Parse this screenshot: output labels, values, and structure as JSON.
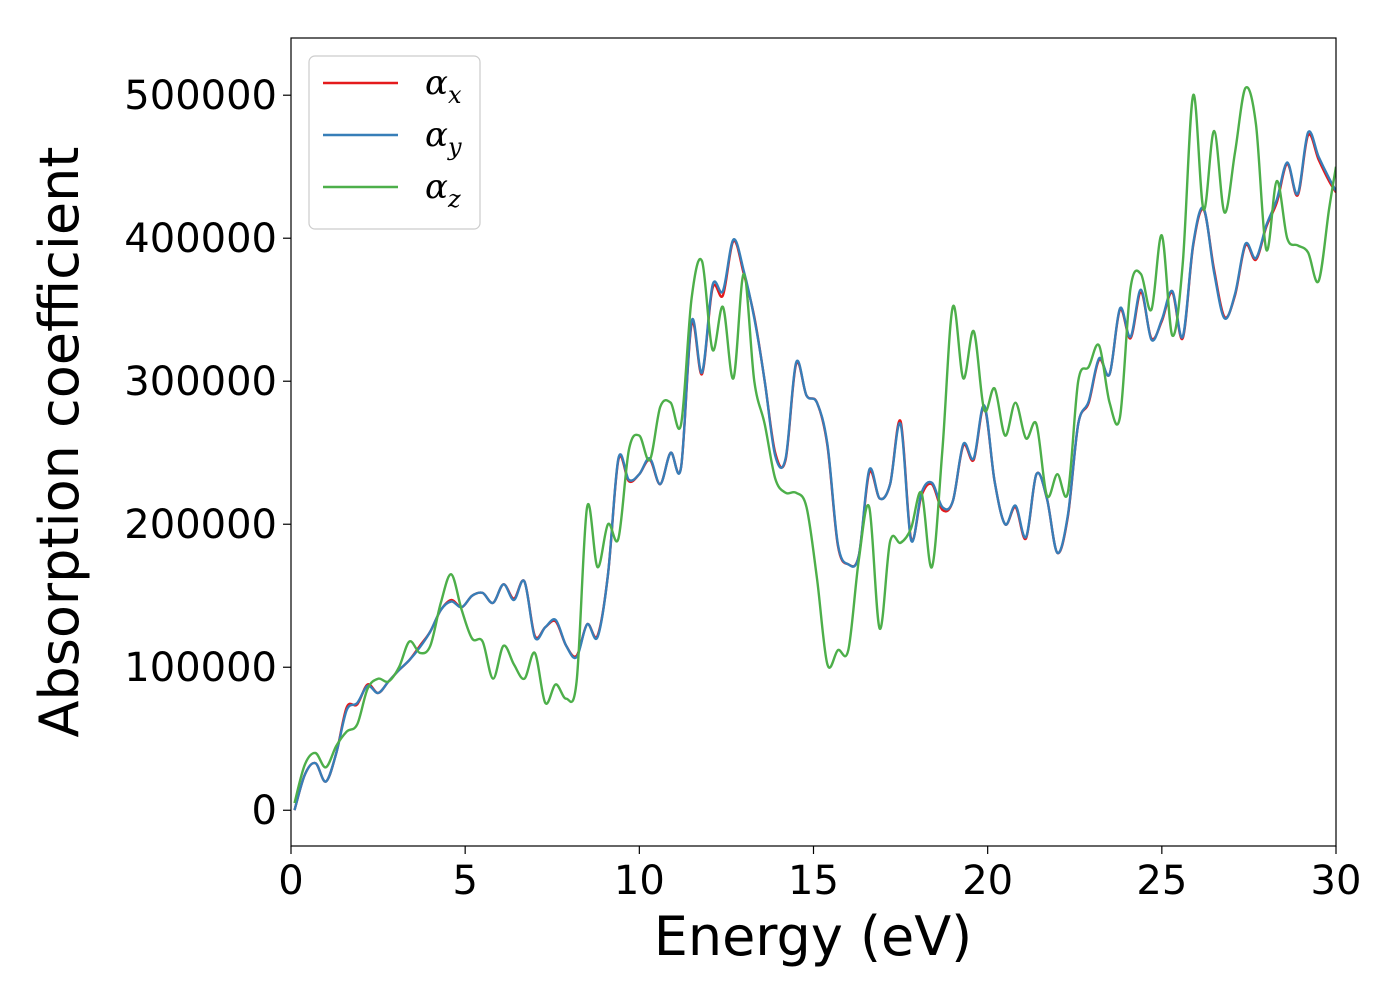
{
  "chart_data": {
    "type": "line",
    "xlabel": "Energy (eV)",
    "ylabel": "Absorption coefficient",
    "xlim": [
      0,
      30
    ],
    "ylim": [
      -25000,
      540000
    ],
    "x_ticks": [
      "0",
      "5",
      "10",
      "15",
      "20",
      "25",
      "30"
    ],
    "y_ticks": [
      "0",
      "100000",
      "200000",
      "300000",
      "400000",
      "500000"
    ],
    "grid": false,
    "legend_placement": "upper-left",
    "series": [
      {
        "name": "α_x",
        "color": "#e41a1c",
        "x": [
          0.1,
          0.4,
          0.7,
          1.0,
          1.3,
          1.6,
          1.9,
          2.2,
          2.5,
          2.8,
          3.1,
          3.4,
          3.7,
          4.0,
          4.3,
          4.6,
          4.9,
          5.2,
          5.5,
          5.8,
          6.1,
          6.4,
          6.7,
          7.0,
          7.3,
          7.6,
          7.9,
          8.2,
          8.5,
          8.8,
          9.1,
          9.4,
          9.7,
          10.0,
          10.3,
          10.6,
          10.9,
          11.2,
          11.5,
          11.8,
          12.1,
          12.4,
          12.7,
          13.0,
          13.3,
          13.6,
          13.9,
          14.2,
          14.5,
          14.8,
          15.1,
          15.4,
          15.7,
          16.0,
          16.3,
          16.6,
          16.9,
          17.2,
          17.5,
          17.8,
          18.1,
          18.4,
          18.7,
          19.0,
          19.3,
          19.6,
          19.9,
          20.2,
          20.5,
          20.8,
          21.1,
          21.4,
          21.7,
          22.0,
          22.3,
          22.6,
          22.9,
          23.2,
          23.5,
          23.8,
          24.1,
          24.4,
          24.7,
          25.0,
          25.3,
          25.6,
          25.9,
          26.2,
          26.5,
          26.8,
          27.1,
          27.4,
          27.7,
          28.0,
          28.3,
          28.6,
          28.9,
          29.2,
          29.5,
          29.8,
          30.0
        ],
        "y": [
          0,
          25000,
          33000,
          20000,
          40000,
          72000,
          74000,
          88000,
          82000,
          90000,
          98000,
          105000,
          115000,
          125000,
          140000,
          147000,
          142000,
          150000,
          152000,
          145000,
          158000,
          148000,
          160000,
          122000,
          128000,
          132000,
          115000,
          108000,
          130000,
          122000,
          165000,
          245000,
          230000,
          235000,
          245000,
          228000,
          250000,
          240000,
          340000,
          305000,
          365000,
          360000,
          398000,
          375000,
          345000,
          300000,
          250000,
          245000,
          312000,
          290000,
          285000,
          255000,
          185000,
          172000,
          178000,
          236000,
          218000,
          228000,
          272000,
          190000,
          220000,
          228000,
          210000,
          216000,
          255000,
          245000,
          282000,
          230000,
          200000,
          212000,
          190000,
          235000,
          218000,
          180000,
          205000,
          270000,
          285000,
          315000,
          305000,
          350000,
          330000,
          362000,
          330000,
          342000,
          362000,
          330000,
          395000,
          420000,
          378000,
          345000,
          360000,
          395000,
          385000,
          408000,
          425000,
          452000,
          430000,
          472000,
          455000,
          440000,
          432000
        ]
      },
      {
        "name": "α_y",
        "color": "#377eb8",
        "x": [
          0.1,
          0.4,
          0.7,
          1.0,
          1.3,
          1.6,
          1.9,
          2.2,
          2.5,
          2.8,
          3.1,
          3.4,
          3.7,
          4.0,
          4.3,
          4.6,
          4.9,
          5.2,
          5.5,
          5.8,
          6.1,
          6.4,
          6.7,
          7.0,
          7.3,
          7.6,
          7.9,
          8.2,
          8.5,
          8.8,
          9.1,
          9.4,
          9.7,
          10.0,
          10.3,
          10.6,
          10.9,
          11.2,
          11.5,
          11.8,
          12.1,
          12.4,
          12.7,
          13.0,
          13.3,
          13.6,
          13.9,
          14.2,
          14.5,
          14.8,
          15.1,
          15.4,
          15.7,
          16.0,
          16.3,
          16.6,
          16.9,
          17.2,
          17.5,
          17.8,
          18.1,
          18.4,
          18.7,
          19.0,
          19.3,
          19.6,
          19.9,
          20.2,
          20.5,
          20.8,
          21.1,
          21.4,
          21.7,
          22.0,
          22.3,
          22.6,
          22.9,
          23.2,
          23.5,
          23.8,
          24.1,
          24.4,
          24.7,
          25.0,
          25.3,
          25.6,
          25.9,
          26.2,
          26.5,
          26.8,
          27.1,
          27.4,
          27.7,
          28.0,
          28.3,
          28.6,
          28.9,
          29.2,
          29.5,
          29.8,
          30.0
        ],
        "y": [
          0,
          25000,
          33000,
          20000,
          40000,
          70000,
          75000,
          87000,
          82000,
          90000,
          98000,
          105000,
          114000,
          125000,
          140000,
          146000,
          142000,
          150000,
          152000,
          145000,
          158000,
          147000,
          160000,
          121000,
          128000,
          133000,
          115000,
          107000,
          130000,
          121000,
          165000,
          246000,
          231000,
          235000,
          246000,
          228000,
          250000,
          240000,
          342000,
          306000,
          367000,
          363000,
          399000,
          377000,
          344000,
          300000,
          248000,
          246000,
          313000,
          290000,
          285000,
          256000,
          186000,
          172000,
          178000,
          238000,
          218000,
          228000,
          270000,
          189000,
          222000,
          229000,
          212000,
          216000,
          256000,
          246000,
          283000,
          230000,
          200000,
          213000,
          191000,
          235000,
          218000,
          180000,
          206000,
          270000,
          286000,
          316000,
          305000,
          351000,
          331000,
          364000,
          329000,
          343000,
          363000,
          331000,
          396000,
          421000,
          376000,
          344000,
          361000,
          396000,
          386000,
          409000,
          427000,
          453000,
          431000,
          474000,
          457000,
          442000,
          433000
        ]
      },
      {
        "name": "α_z",
        "color": "#4daf4a",
        "x": [
          0.1,
          0.4,
          0.7,
          1.0,
          1.3,
          1.6,
          1.9,
          2.2,
          2.5,
          2.8,
          3.1,
          3.4,
          3.7,
          4.0,
          4.3,
          4.6,
          4.9,
          5.2,
          5.5,
          5.8,
          6.1,
          6.4,
          6.7,
          7.0,
          7.3,
          7.6,
          7.9,
          8.2,
          8.5,
          8.8,
          9.1,
          9.4,
          9.7,
          10.0,
          10.3,
          10.6,
          10.9,
          11.2,
          11.5,
          11.8,
          12.1,
          12.4,
          12.7,
          13.0,
          13.3,
          13.6,
          13.9,
          14.2,
          14.5,
          14.8,
          15.1,
          15.4,
          15.7,
          16.0,
          16.3,
          16.6,
          16.9,
          17.2,
          17.5,
          17.8,
          18.1,
          18.4,
          18.7,
          19.0,
          19.3,
          19.6,
          19.9,
          20.2,
          20.5,
          20.8,
          21.1,
          21.4,
          21.7,
          22.0,
          22.3,
          22.6,
          22.9,
          23.2,
          23.5,
          23.8,
          24.1,
          24.4,
          24.7,
          25.0,
          25.3,
          25.6,
          25.9,
          26.2,
          26.5,
          26.8,
          27.1,
          27.4,
          27.7,
          28.0,
          28.3,
          28.6,
          28.9,
          29.2,
          29.5,
          29.8,
          30.0
        ],
        "y": [
          5000,
          32000,
          40000,
          30000,
          45000,
          55000,
          60000,
          85000,
          92000,
          90000,
          100000,
          118000,
          110000,
          115000,
          145000,
          165000,
          140000,
          120000,
          118000,
          92000,
          115000,
          102000,
          92000,
          110000,
          75000,
          88000,
          78000,
          90000,
          212000,
          170000,
          200000,
          190000,
          252000,
          262000,
          245000,
          282000,
          285000,
          270000,
          358000,
          384000,
          322000,
          352000,
          302000,
          375000,
          300000,
          270000,
          232000,
          222000,
          222000,
          212000,
          162000,
          102000,
          112000,
          112000,
          175000,
          212000,
          127000,
          188000,
          187000,
          197000,
          222000,
          170000,
          252000,
          352000,
          302000,
          335000,
          280000,
          295000,
          262000,
          285000,
          260000,
          270000,
          220000,
          235000,
          222000,
          300000,
          310000,
          325000,
          285000,
          275000,
          365000,
          375000,
          350000,
          402000,
          332000,
          382000,
          500000,
          420000,
          475000,
          418000,
          460000,
          505000,
          480000,
          392000,
          440000,
          400000,
          395000,
          390000,
          370000,
          420000,
          450000
        ]
      }
    ]
  }
}
